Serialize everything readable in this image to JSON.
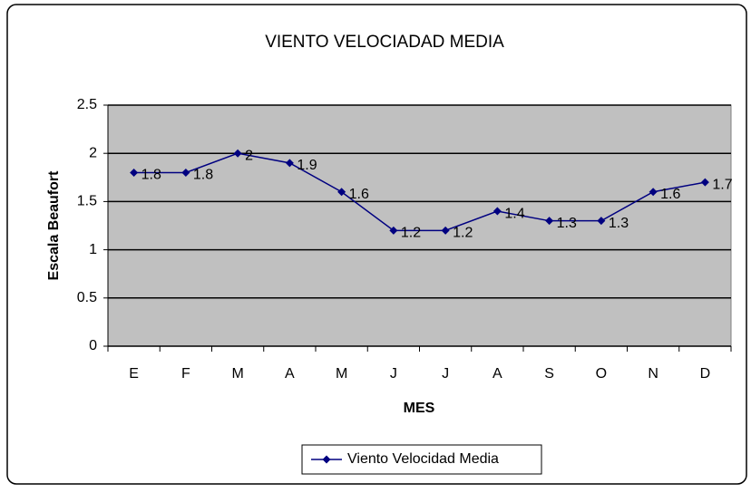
{
  "chart_data": {
    "type": "line",
    "title": "VIENTO VELOCIADAD MEDIA",
    "x_label": "MES",
    "y_label": "Escala Beaufort",
    "categories": [
      "E",
      "F",
      "M",
      "A",
      "M",
      "J",
      "J",
      "A",
      "S",
      "O",
      "N",
      "D"
    ],
    "series": [
      {
        "name": "Viento Velocidad Media",
        "color": "#000080",
        "values": [
          1.8,
          1.8,
          2,
          1.9,
          1.6,
          1.2,
          1.2,
          1.4,
          1.3,
          1.3,
          1.6,
          1.7
        ]
      }
    ],
    "ylim": [
      0,
      2.5
    ],
    "yticks": [
      0,
      0.5,
      1,
      1.5,
      2,
      2.5
    ],
    "grid": true,
    "legend": "bottom"
  }
}
